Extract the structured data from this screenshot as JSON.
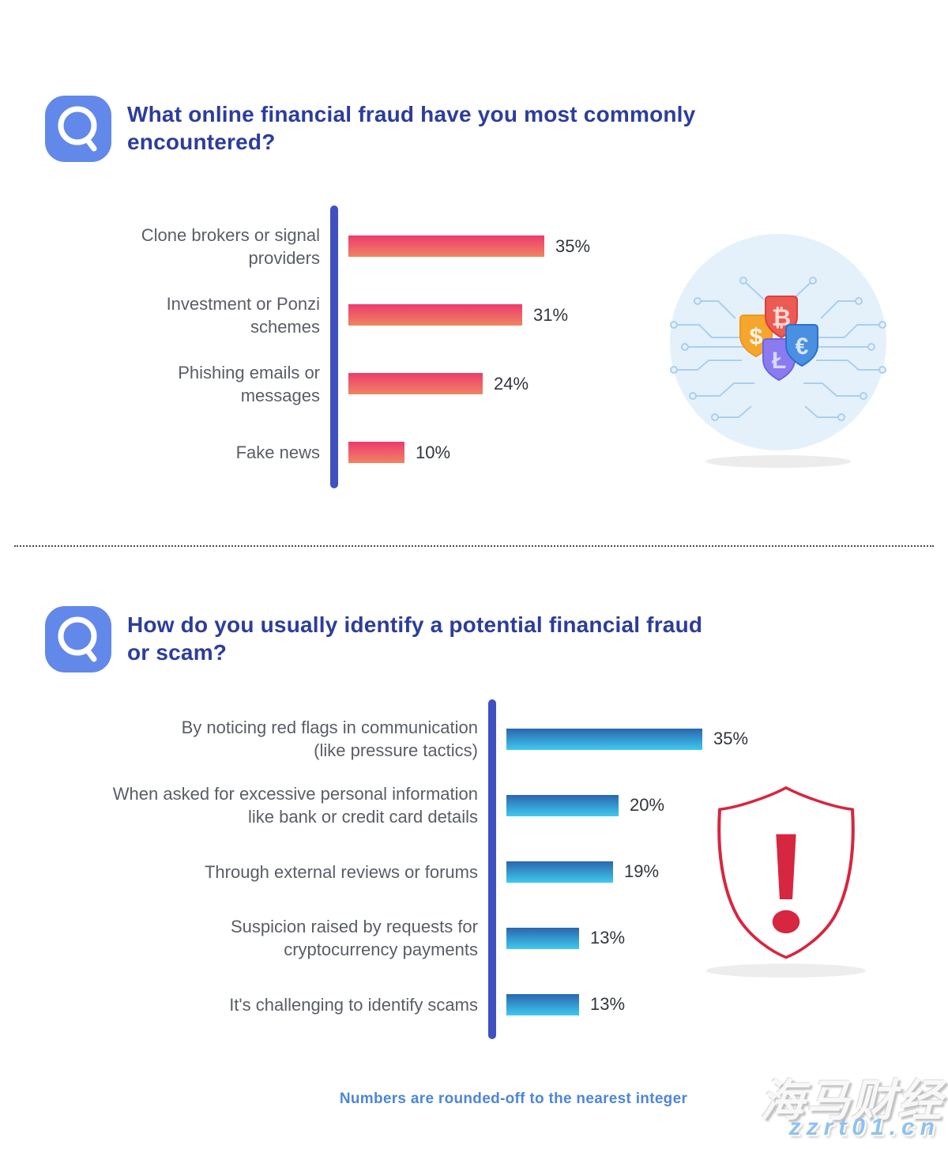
{
  "sections": [
    {
      "question": "What online financial fraud have you most commonly\nencountered?"
    },
    {
      "question": "How do you usually identify a potential financial fraud\nor scam?"
    }
  ],
  "chart_data": [
    {
      "type": "bar",
      "orientation": "horizontal",
      "title": "What online financial fraud have you most commonly encountered?",
      "categories": [
        "Clone brokers or signal\nproviders",
        "Investment or Ponzi\nschemes",
        "Phishing emails or\nmessages",
        "Fake news"
      ],
      "values": [
        35,
        31,
        24,
        10
      ],
      "value_labels": [
        "35%",
        "31%",
        "24%",
        "10%"
      ],
      "unit": "%",
      "xlim": [
        0,
        35
      ],
      "grid": false,
      "legend": false,
      "bar_gradient": [
        "#ee3a6e",
        "#ef8562"
      ],
      "axis_color": "#3f51c1"
    },
    {
      "type": "bar",
      "orientation": "horizontal",
      "title": "How do you usually identify a potential financial fraud or scam?",
      "categories": [
        "By noticing red flags in communication\n(like pressure tactics)",
        "When asked for excessive personal information\nlike bank or credit card details",
        "Through external reviews or forums",
        "Suspicion raised by requests for\ncryptocurrency payments",
        "It's challenging to identify scams"
      ],
      "values": [
        35,
        20,
        19,
        13,
        13
      ],
      "value_labels": [
        "35%",
        "20%",
        "19%",
        "13%",
        "13%"
      ],
      "unit": "%",
      "xlim": [
        0,
        35
      ],
      "grid": false,
      "legend": false,
      "bar_gradient": [
        "#2a66af",
        "#3fc9ee"
      ],
      "axis_color": "#3f51c1"
    }
  ],
  "illustrations": {
    "currency_shields": {
      "glyphs": {
        "dollar": "$",
        "bitcoin": "₿",
        "euro": "€",
        "litecoin": "Ł"
      }
    },
    "alert_shield": {
      "glyph": "!"
    }
  },
  "footer": {
    "note": "Numbers are rounded-off to the nearest integer"
  },
  "watermark": {
    "line1": "海马财经",
    "line2": "zzrt01.cn"
  },
  "colors": {
    "title": "#2c3d9c",
    "category_label": "#595e66",
    "value_label": "#31363c",
    "axis": "#3f51c1",
    "question_icon_bg": "#6289e9",
    "footer_note": "#4e86d8",
    "alert_red": "#d7263f",
    "bar_pink_top": "#ee3a6e",
    "bar_pink_bottom": "#ef8562",
    "bar_blue_top": "#2a66af",
    "bar_blue_bottom": "#3fc9ee",
    "illustration_circle": "#e4f1fb",
    "circuit_line": "#abcfec"
  }
}
